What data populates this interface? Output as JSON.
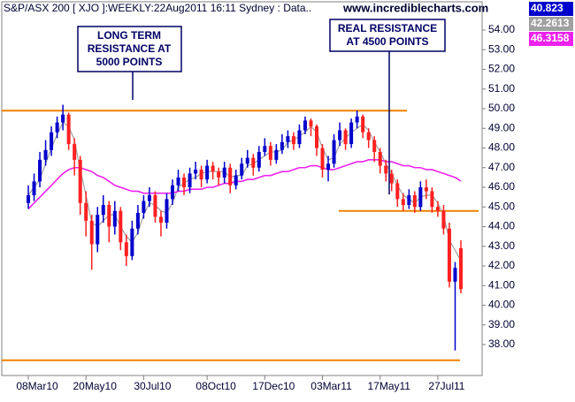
{
  "chart_data": {
    "type": "candlestick",
    "title": "S&P/ASX 200 [ XJO ]:WEEKLY:22Aug2011 16:11 Sydney : Data..",
    "watermark": "www.incrediblecharts.com",
    "categories": [
      "08Mar10",
      null,
      null,
      null,
      null,
      null,
      null,
      null,
      null,
      null,
      "20May10",
      null,
      null,
      null,
      null,
      null,
      null,
      null,
      null,
      null,
      "30Jul10",
      null,
      null,
      null,
      null,
      null,
      null,
      null,
      null,
      null,
      null,
      "08Oct10",
      null,
      null,
      null,
      null,
      null,
      null,
      null,
      null,
      null,
      "17Dec10",
      null,
      null,
      null,
      null,
      null,
      null,
      null,
      null,
      null,
      "03Mar11",
      null,
      null,
      null,
      null,
      null,
      null,
      null,
      null,
      null,
      "17May11",
      null,
      null,
      null,
      null,
      null,
      null,
      null,
      null,
      null,
      "27Jul11",
      null,
      null,
      null,
      null
    ],
    "open": [
      45.2,
      45.6,
      46.3,
      47.4,
      47.9,
      48.8,
      49.3,
      49.7,
      48.2,
      47.4,
      45.2,
      44.3,
      43.1,
      44.6,
      45.1,
      44.0,
      44.8,
      43.2,
      42.5,
      43.9,
      44.7,
      45.3,
      45.6,
      44.5,
      44.2,
      45.4,
      46.1,
      46.5,
      46.0,
      46.7,
      46.9,
      46.4,
      47.1,
      46.8,
      46.5,
      47.0,
      46.1,
      46.6,
      47.2,
      47.5,
      47.0,
      47.8,
      48.1,
      47.4,
      47.9,
      48.3,
      48.6,
      48.2,
      48.9,
      49.4,
      49.1,
      48.0,
      46.9,
      47.2,
      48.4,
      48.9,
      48.2,
      49.3,
      49.6,
      48.8,
      48.4,
      47.8,
      47.1,
      46.7,
      46.2,
      45.4,
      45.1,
      45.6,
      45.0,
      46.0,
      45.8,
      45.0,
      44.8,
      43.9,
      41.2,
      42.9
    ],
    "high": [
      46.1,
      46.7,
      47.8,
      48.4,
      49.1,
      49.6,
      50.2,
      49.8,
      48.5,
      47.6,
      45.8,
      44.6,
      45.0,
      45.6,
      45.3,
      45.3,
      45.0,
      43.6,
      44.3,
      45.1,
      45.6,
      46.0,
      45.8,
      44.8,
      45.7,
      46.4,
      46.9,
      46.7,
      47.0,
      47.3,
      47.1,
      47.4,
      47.3,
      47.0,
      47.3,
      47.2,
      46.9,
      47.5,
      47.9,
      47.7,
      48.1,
      48.5,
      48.3,
      48.2,
      48.7,
      48.9,
      48.8,
      49.2,
      49.6,
      49.5,
      49.2,
      48.2,
      47.6,
      48.7,
      49.3,
      49.0,
      49.5,
      49.9,
      49.7,
      49.0,
      48.6,
      48.0,
      47.4,
      46.9,
      46.4,
      45.7,
      45.9,
      45.8,
      46.3,
      46.4,
      46.0,
      45.3,
      45.1,
      44.2,
      42.2,
      43.3
    ],
    "low": [
      44.9,
      45.3,
      46.0,
      47.1,
      47.6,
      48.5,
      48.9,
      47.9,
      46.6,
      44.6,
      43.5,
      41.8,
      42.7,
      44.2,
      43.2,
      43.6,
      42.8,
      42.0,
      42.3,
      43.6,
      44.4,
      45.0,
      44.2,
      43.5,
      43.9,
      45.1,
      45.8,
      45.6,
      45.7,
      46.4,
      46.0,
      46.2,
      46.4,
      46.1,
      46.2,
      45.7,
      45.9,
      46.4,
      47.0,
      46.6,
      46.8,
      47.6,
      47.1,
      47.2,
      47.7,
      48.0,
      47.9,
      48.0,
      48.7,
      48.6,
      47.6,
      46.5,
      46.3,
      47.0,
      48.1,
      47.9,
      48.0,
      49.0,
      48.5,
      48.0,
      47.3,
      46.7,
      46.3,
      45.8,
      45.0,
      44.8,
      44.9,
      44.7,
      44.8,
      45.4,
      44.7,
      44.5,
      43.6,
      40.9,
      37.7,
      40.6
    ],
    "close": [
      45.6,
      46.3,
      47.4,
      47.9,
      48.8,
      49.3,
      49.7,
      48.2,
      47.4,
      45.2,
      44.3,
      43.1,
      44.6,
      45.1,
      44.0,
      44.8,
      43.2,
      42.5,
      43.9,
      44.7,
      45.3,
      45.6,
      44.5,
      44.2,
      45.4,
      46.1,
      46.5,
      46.0,
      46.7,
      46.9,
      46.4,
      47.1,
      46.8,
      46.5,
      47.0,
      46.1,
      46.6,
      47.2,
      47.5,
      47.0,
      47.8,
      48.1,
      47.4,
      47.9,
      48.3,
      48.6,
      48.2,
      48.9,
      49.4,
      49.1,
      48.0,
      46.9,
      47.2,
      48.4,
      48.9,
      48.2,
      49.3,
      49.6,
      48.8,
      48.4,
      47.8,
      47.1,
      46.7,
      46.2,
      45.4,
      45.1,
      45.6,
      45.0,
      46.0,
      45.8,
      45.0,
      44.8,
      43.9,
      41.2,
      41.9,
      40.823
    ],
    "up_color": "#0000cc",
    "down_color": "#ff2020",
    "close_label_color": "#0000cc",
    "series": [
      {
        "color": "#a0a0a0",
        "values": [
          45.6,
          46.0,
          46.4,
          47.2,
          48.0,
          48.7,
          49.3,
          49.1,
          48.4,
          46.9,
          45.6,
          44.2,
          44.0,
          44.3,
          44.6,
          44.6,
          44.0,
          43.5,
          43.2,
          43.7,
          44.6,
          45.2,
          45.1,
          44.8,
          44.7,
          45.2,
          46.0,
          46.2,
          46.4,
          46.5,
          46.7,
          46.8,
          46.8,
          46.8,
          46.8,
          46.5,
          46.6,
          46.6,
          47.1,
          47.2,
          47.4,
          47.6,
          47.8,
          47.8,
          47.9,
          48.3,
          48.4,
          48.6,
          48.8,
          49.1,
          48.8,
          48.0,
          47.4,
          47.5,
          48.2,
          48.5,
          48.8,
          49.0,
          49.2,
          48.9,
          48.3,
          47.8,
          47.2,
          46.7,
          46.1,
          45.6,
          45.4,
          45.2,
          45.5,
          45.6,
          45.6,
          45.2,
          44.6,
          43.3,
          42.8,
          42.2613
        ]
      },
      {
        "color": "#ee22ee",
        "values": [
          44.9,
          45.2,
          45.5,
          45.8,
          46.1,
          46.4,
          46.7,
          46.9,
          47.0,
          47.0,
          46.9,
          46.8,
          46.6,
          46.5,
          46.3,
          46.1,
          46.0,
          45.9,
          45.8,
          45.8,
          45.7,
          45.7,
          45.7,
          45.7,
          45.7,
          45.7,
          45.8,
          45.8,
          45.9,
          45.9,
          45.9,
          46.0,
          46.0,
          46.1,
          46.2,
          46.2,
          46.3,
          46.3,
          46.4,
          46.4,
          46.5,
          46.6,
          46.6,
          46.7,
          46.8,
          46.8,
          46.9,
          47.0,
          47.0,
          47.1,
          47.1,
          47.0,
          46.9,
          46.9,
          47.0,
          47.1,
          47.2,
          47.3,
          47.3,
          47.4,
          47.4,
          47.4,
          47.3,
          47.3,
          47.2,
          47.1,
          47.1,
          47.0,
          47.0,
          46.9,
          46.9,
          46.8,
          46.7,
          46.6,
          46.5,
          46.3158
        ]
      }
    ],
    "levels": [
      49.9,
      44.8,
      37.2
    ],
    "level_color": "#f08000",
    "annotations": [
      {
        "lines": [
          "LONG TERM",
          "RESISTANCE AT",
          "5000 POINTS"
        ]
      },
      {
        "lines": [
          "REAL RESISTANCE",
          "AT 4500 POINTS"
        ]
      }
    ],
    "ylim": [
      36.65,
      55.35
    ],
    "yticks": [
      {
        "value": 38,
        "label": "38.00"
      },
      {
        "value": 39,
        "label": "39.00"
      },
      {
        "value": 40,
        "label": "40.00"
      },
      {
        "value": 41,
        "label": "41.00"
      },
      {
        "value": 42,
        "label": "42.00"
      },
      {
        "value": 43,
        "label": "43.00"
      },
      {
        "value": 44,
        "label": "44.00"
      },
      {
        "value": 45,
        "label": "45.00"
      },
      {
        "value": 46,
        "label": "46.00"
      },
      {
        "value": 47,
        "label": "47.00"
      },
      {
        "value": 48,
        "label": "48.00"
      },
      {
        "value": 49,
        "label": "49.00"
      },
      {
        "value": 50,
        "label": "50.00"
      },
      {
        "value": 51,
        "label": "51.00"
      },
      {
        "value": 52,
        "label": "52.00"
      },
      {
        "value": 53,
        "label": "53.00"
      },
      {
        "value": 54,
        "label": "54.00"
      }
    ]
  }
}
